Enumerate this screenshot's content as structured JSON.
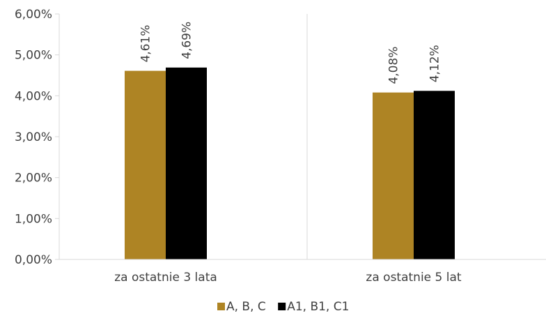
{
  "chart_data": {
    "type": "bar",
    "categories": [
      "za ostatnie 3 lata",
      "za ostatnie 5 lat"
    ],
    "series": [
      {
        "name": "A, B, C",
        "values": [
          4.61,
          4.08
        ],
        "labels": [
          "4,61%",
          "4,08%"
        ],
        "color": "#ae8424"
      },
      {
        "name": "A1, B1, C1",
        "values": [
          4.69,
          4.12
        ],
        "labels": [
          "4,69%",
          "4,12%"
        ],
        "color": "#000000"
      }
    ],
    "yticks": [
      "0,00%",
      "1,00%",
      "2,00%",
      "3,00%",
      "4,00%",
      "5,00%",
      "6,00%"
    ],
    "ylim": [
      0,
      6
    ],
    "grid": false,
    "legend": "bottom-center",
    "axis_color": "#d9d9d9",
    "text_color": "#404040"
  }
}
